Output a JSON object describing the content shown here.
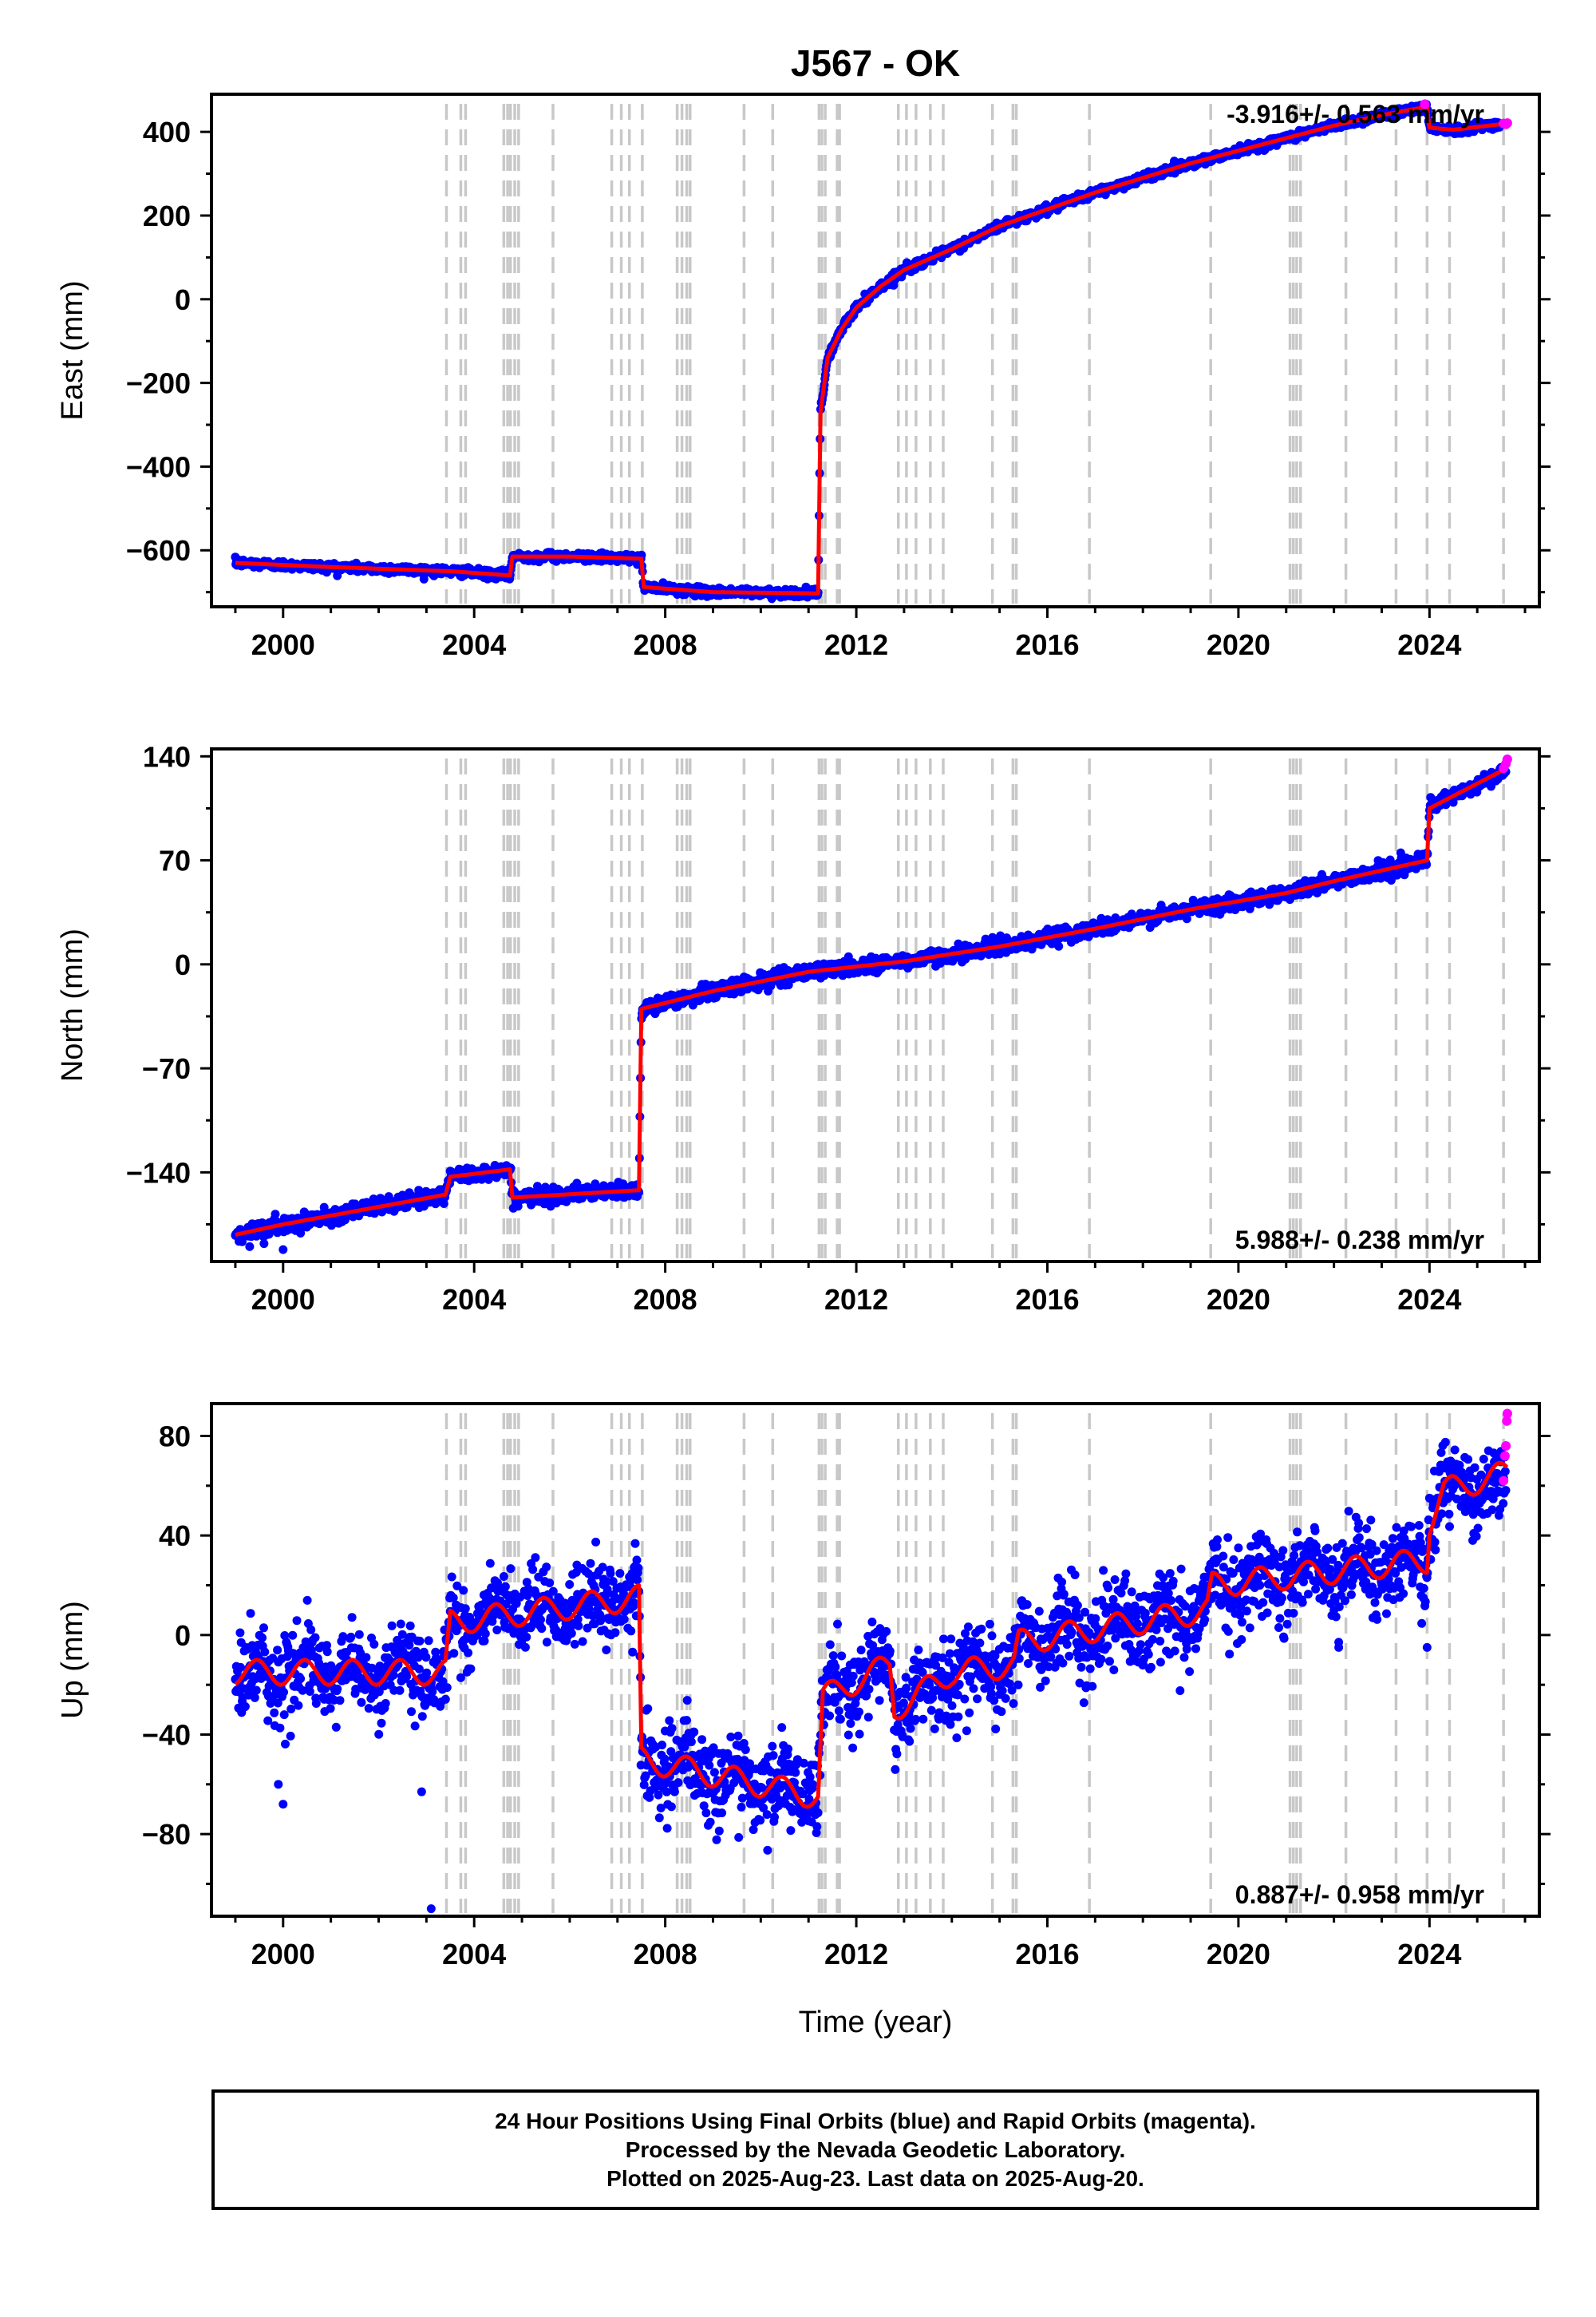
{
  "chart_data": [
    {
      "type": "scatter",
      "panel": "east",
      "title": "J567 - OK",
      "ylabel": "East (mm)",
      "xlabel": "",
      "xlim": [
        1998.5,
        2026.3
      ],
      "ylim": [
        -735,
        490
      ],
      "x_ticks": [
        2000,
        2004,
        2008,
        2012,
        2016,
        2020,
        2024
      ],
      "x_tick_labels": [
        "2000",
        "2004",
        "2008",
        "2012",
        "2016",
        "2020",
        "2024"
      ],
      "y_ticks": [
        -600,
        -400,
        -200,
        0,
        200,
        400
      ],
      "y_tick_labels": [
        "−600",
        "−400",
        "−200",
        "0",
        "200",
        "400"
      ],
      "rate_label": "-3.916+/- 0.563 mm/yr",
      "rate_position": "top-right",
      "series": [
        {
          "role": "final orbits",
          "color": "#0000ff",
          "scatter_mm": 5,
          "trend": [
            [
              1999.0,
              -630
            ],
            [
              2001.0,
              -640
            ],
            [
              2003.5,
              -650
            ],
            [
              2004.75,
              -660
            ],
            [
              2004.8,
              -615
            ],
            [
              2006.0,
              -615
            ],
            [
              2007.5,
              -620
            ],
            [
              2007.55,
              -688
            ],
            [
              2009.0,
              -700
            ],
            [
              2011.2,
              -703
            ],
            [
              2011.25,
              -270
            ],
            [
              2011.4,
              -140
            ],
            [
              2011.7,
              -70
            ],
            [
              2012.0,
              -20
            ],
            [
              2012.5,
              30
            ],
            [
              2013.0,
              70
            ],
            [
              2014.0,
              120
            ],
            [
              2015.0,
              175
            ],
            [
              2016.0,
              215
            ],
            [
              2017.0,
              255
            ],
            [
              2018.0,
              290
            ],
            [
              2019.0,
              325
            ],
            [
              2020.0,
              355
            ],
            [
              2021.0,
              385
            ],
            [
              2022.0,
              415
            ],
            [
              2023.0,
              440
            ],
            [
              2023.95,
              460
            ],
            [
              2024.0,
              410
            ],
            [
              2024.5,
              405
            ],
            [
              2025.5,
              420
            ]
          ]
        },
        {
          "role": "rapid orbits",
          "color": "#ff00ff",
          "points": [
            [
              2025.55,
              420
            ],
            [
              2025.6,
              418
            ],
            [
              2025.63,
              421
            ],
            [
              2023.9,
              466
            ]
          ]
        },
        {
          "role": "model",
          "color": "#ff0000",
          "line": [
            [
              1999.0,
              -630
            ],
            [
              2001.0,
              -640
            ],
            [
              2003.5,
              -650
            ],
            [
              2004.75,
              -660
            ],
            [
              2004.8,
              -615
            ],
            [
              2006.0,
              -615
            ],
            [
              2007.5,
              -620
            ],
            [
              2007.55,
              -688
            ],
            [
              2009.0,
              -700
            ],
            [
              2011.2,
              -703
            ],
            [
              2011.25,
              -270
            ],
            [
              2011.4,
              -140
            ],
            [
              2011.7,
              -70
            ],
            [
              2012.0,
              -20
            ],
            [
              2012.5,
              30
            ],
            [
              2013.0,
              70
            ],
            [
              2014.0,
              120
            ],
            [
              2015.0,
              175
            ],
            [
              2016.0,
              215
            ],
            [
              2017.0,
              255
            ],
            [
              2018.0,
              290
            ],
            [
              2019.0,
              325
            ],
            [
              2020.0,
              355
            ],
            [
              2021.0,
              385
            ],
            [
              2022.0,
              415
            ],
            [
              2023.0,
              440
            ],
            [
              2023.95,
              460
            ],
            [
              2024.0,
              410
            ],
            [
              2024.5,
              405
            ],
            [
              2025.62,
              420
            ]
          ]
        }
      ],
      "outliers": []
    },
    {
      "type": "scatter",
      "panel": "north",
      "title": "",
      "ylabel": "North (mm)",
      "xlabel": "",
      "xlim": [
        1998.5,
        2026.3
      ],
      "ylim": [
        -200,
        145
      ],
      "x_ticks": [
        2000,
        2004,
        2008,
        2012,
        2016,
        2020,
        2024
      ],
      "x_tick_labels": [
        "2000",
        "2004",
        "2008",
        "2012",
        "2016",
        "2020",
        "2024"
      ],
      "y_ticks": [
        -140,
        -70,
        0,
        70,
        140
      ],
      "y_tick_labels": [
        "−140",
        "−70",
        "0",
        "70",
        "140"
      ],
      "rate_label": "5.988+/- 0.238 mm/yr",
      "rate_position": "bottom-right",
      "series": [
        {
          "role": "final orbits",
          "color": "#0000ff",
          "scatter_mm": 2.5,
          "trend": [
            [
              1999.0,
              -182
            ],
            [
              2000.0,
              -175
            ],
            [
              2003.4,
              -155
            ],
            [
              2003.5,
              -143
            ],
            [
              2004.75,
              -138
            ],
            [
              2004.8,
              -157
            ],
            [
              2007.45,
              -152
            ],
            [
              2007.5,
              -30
            ],
            [
              2009.0,
              -18
            ],
            [
              2011.0,
              -5
            ],
            [
              2013.0,
              2
            ],
            [
              2015.0,
              12
            ],
            [
              2017.0,
              24
            ],
            [
              2019.0,
              37
            ],
            [
              2021.0,
              48
            ],
            [
              2022.0,
              56
            ],
            [
              2023.95,
              70
            ],
            [
              2024.0,
              105
            ],
            [
              2025.6,
              130
            ]
          ]
        },
        {
          "role": "rapid orbits",
          "color": "#ff00ff",
          "points": [
            [
              2025.55,
              132
            ],
            [
              2025.6,
              135
            ],
            [
              2025.63,
              138
            ]
          ]
        },
        {
          "role": "model",
          "color": "#ff0000",
          "line": [
            [
              1999.0,
              -182
            ],
            [
              2000.0,
              -175
            ],
            [
              2003.4,
              -155
            ],
            [
              2003.5,
              -143
            ],
            [
              2004.75,
              -138
            ],
            [
              2004.8,
              -157
            ],
            [
              2007.45,
              -152
            ],
            [
              2007.5,
              -30
            ],
            [
              2009.0,
              -18
            ],
            [
              2011.0,
              -5
            ],
            [
              2013.0,
              2
            ],
            [
              2015.0,
              12
            ],
            [
              2017.0,
              24
            ],
            [
              2019.0,
              37
            ],
            [
              2021.0,
              48
            ],
            [
              2022.0,
              56
            ],
            [
              2023.95,
              70
            ],
            [
              2024.0,
              105
            ],
            [
              2025.62,
              132
            ]
          ]
        }
      ],
      "outliers": [
        [
          1999.3,
          -190
        ],
        [
          1999.6,
          -188
        ],
        [
          2000.0,
          -192
        ]
      ]
    },
    {
      "type": "scatter",
      "panel": "up",
      "title": "",
      "ylabel": "Up (mm)",
      "xlabel": "Time (year)",
      "xlim": [
        1998.5,
        2026.3
      ],
      "ylim": [
        -113,
        93
      ],
      "x_ticks": [
        2000,
        2004,
        2008,
        2012,
        2016,
        2020,
        2024
      ],
      "x_tick_labels": [
        "2000",
        "2004",
        "2008",
        "2012",
        "2016",
        "2020",
        "2024"
      ],
      "y_ticks": [
        -80,
        -40,
        0,
        40,
        80
      ],
      "y_tick_labels": [
        "−80",
        "−40",
        "0",
        "40",
        "80"
      ],
      "rate_label": "0.887+/- 0.958 mm/yr",
      "rate_position": "bottom-right",
      "series": [
        {
          "role": "final orbits",
          "color": "#0000ff",
          "scatter_mm": 8,
          "seasonal_mm": 5,
          "trend": [
            [
              1999.0,
              -15
            ],
            [
              2003.4,
              -15
            ],
            [
              2003.5,
              5
            ],
            [
              2007.45,
              15
            ],
            [
              2007.5,
              -50
            ],
            [
              2011.2,
              -65
            ],
            [
              2011.3,
              -25
            ],
            [
              2012.7,
              -12
            ],
            [
              2012.8,
              -30
            ],
            [
              2014.0,
              -15
            ],
            [
              2015.3,
              -12
            ],
            [
              2015.4,
              -3
            ],
            [
              2019.35,
              10
            ],
            [
              2019.45,
              20
            ],
            [
              2023.95,
              30
            ],
            [
              2024.0,
              45
            ],
            [
              2024.3,
              58
            ],
            [
              2025.6,
              60
            ]
          ]
        },
        {
          "role": "rapid orbits",
          "color": "#ff00ff",
          "points": [
            [
              2025.55,
              62
            ],
            [
              2025.58,
              72
            ],
            [
              2025.6,
              76
            ],
            [
              2025.62,
              86
            ],
            [
              2025.63,
              89
            ]
          ]
        },
        {
          "role": "model",
          "color": "#ff0000",
          "seasonal_mm": 5,
          "line": [
            [
              1999.0,
              -15
            ],
            [
              2003.4,
              -15
            ],
            [
              2003.5,
              5
            ],
            [
              2007.45,
              15
            ],
            [
              2007.5,
              -50
            ],
            [
              2011.2,
              -65
            ],
            [
              2011.3,
              -25
            ],
            [
              2012.7,
              -12
            ],
            [
              2012.8,
              -30
            ],
            [
              2014.0,
              -15
            ],
            [
              2015.3,
              -12
            ],
            [
              2015.4,
              -3
            ],
            [
              2019.35,
              10
            ],
            [
              2019.45,
              20
            ],
            [
              2023.95,
              30
            ],
            [
              2024.0,
              45
            ],
            [
              2024.3,
              58
            ],
            [
              2025.62,
              65
            ]
          ]
        }
      ],
      "outliers": [
        [
          2003.1,
          -110
        ],
        [
          2000.0,
          -68
        ],
        [
          1999.9,
          -60
        ],
        [
          2002.9,
          -63
        ],
        [
          2022.1,
          -5
        ],
        [
          2023.95,
          -5
        ],
        [
          2020.0,
          35
        ],
        [
          2024.0,
          55
        ]
      ]
    }
  ],
  "equipment_change_epochs": [
    2003.42,
    2003.72,
    2003.82,
    2004.62,
    2004.7,
    2004.76,
    2004.85,
    2004.93,
    2005.65,
    2006.88,
    2007.08,
    2007.25,
    2007.52,
    2008.25,
    2008.35,
    2008.45,
    2008.52,
    2009.65,
    2010.25,
    2011.22,
    2011.28,
    2011.35,
    2011.6,
    2011.65,
    2012.88,
    2013.05,
    2013.25,
    2013.55,
    2013.82,
    2014.85,
    2015.28,
    2015.35,
    2016.88,
    2019.42,
    2021.08,
    2021.15,
    2021.22,
    2021.3,
    2022.25,
    2023.3,
    2023.95,
    2024.42,
    2025.55
  ],
  "footer": {
    "line1": "24 Hour Positions Using Final Orbits (blue) and Rapid Orbits (magenta).",
    "line2": "Processed by the Nevada Geodetic Laboratory.",
    "line3": "Plotted on 2025-Aug-23. Last data on 2025-Aug-20."
  }
}
